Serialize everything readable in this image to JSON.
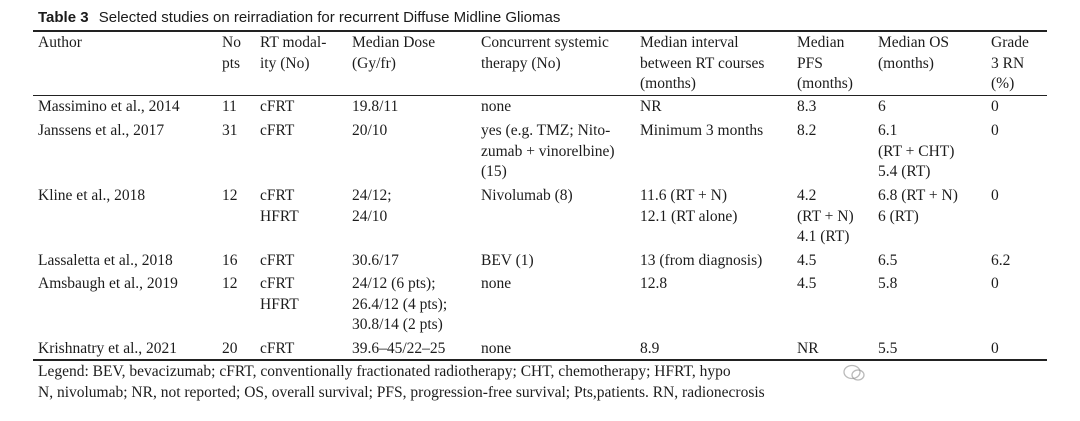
{
  "caption": {
    "label": "Table 3",
    "title": "Selected studies on reirradiation for recurrent Diffuse Midline Gliomas"
  },
  "headers": [
    [
      "Author"
    ],
    [
      "No",
      "pts"
    ],
    [
      "RT modal-",
      "ity (No)"
    ],
    [
      "Median Dose",
      "(Gy/fr)"
    ],
    [
      "Concurrent systemic",
      "therapy (No)"
    ],
    [
      "Median interval",
      "between RT courses",
      "(months)"
    ],
    [
      "Median",
      "PFS",
      "(months)"
    ],
    [
      "Median OS",
      "(months)"
    ],
    [
      "Grade",
      "3 RN",
      "(%)"
    ]
  ],
  "rows": [
    [
      [
        "Massimino et al., 2014"
      ],
      [
        "11"
      ],
      [
        "cFRT"
      ],
      [
        "19.8/11"
      ],
      [
        "none"
      ],
      [
        "NR"
      ],
      [
        "8.3"
      ],
      [
        "6"
      ],
      [
        "0"
      ]
    ],
    [
      [
        "Janssens et al., 2017"
      ],
      [
        "31"
      ],
      [
        "cFRT"
      ],
      [
        "20/10"
      ],
      [
        "yes (e.g. TMZ; Nito-",
        "zumab + vinorelbine)",
        "(15)"
      ],
      [
        "Minimum 3 months"
      ],
      [
        "8.2"
      ],
      [
        "6.1",
        "(RT + CHT)",
        "5.4 (RT)"
      ],
      [
        "0"
      ]
    ],
    [
      [
        "Kline et al., 2018"
      ],
      [
        "12"
      ],
      [
        "cFRT",
        "HFRT"
      ],
      [
        "24/12;",
        "24/10"
      ],
      [
        "Nivolumab (8)"
      ],
      [
        "11.6 (RT + N)",
        "12.1 (RT alone)"
      ],
      [
        "4.2",
        "(RT + N)",
        "4.1 (RT)"
      ],
      [
        "6.8 (RT + N)",
        "6 (RT)"
      ],
      [
        "0"
      ]
    ],
    [
      [
        "Lassaletta et al., 2018"
      ],
      [
        "16"
      ],
      [
        "cFRT"
      ],
      [
        "30.6/17"
      ],
      [
        "BEV (1)"
      ],
      [
        "13 (from diagnosis)"
      ],
      [
        "4.5"
      ],
      [
        "6.5"
      ],
      [
        "6.2"
      ]
    ],
    [
      [
        "Amsbaugh et al., 2019"
      ],
      [
        "12"
      ],
      [
        "cFRT",
        "HFRT"
      ],
      [
        "24/12 (6 pts);",
        "26.4/12 (4 pts);",
        "30.8/14 (2 pts)"
      ],
      [
        "none"
      ],
      [
        "12.8"
      ],
      [
        "4.5"
      ],
      [
        "5.8"
      ],
      [
        "0"
      ]
    ],
    [
      [
        "Krishnatry et al., 2021"
      ],
      [
        "20"
      ],
      [
        "cFRT"
      ],
      [
        "39.6–45/22–25"
      ],
      [
        "none"
      ],
      [
        "8.9"
      ],
      [
        "NR"
      ],
      [
        "5.5"
      ],
      [
        "0"
      ]
    ]
  ],
  "legend": [
    "Legend: BEV, bevacizumab; cFRT, conventionally fractionated radiotherapy; CHT, chemotherapy; HFRT, hypo",
    "N, nivolumab; NR, not reported; OS, overall survival; PFS, progression-free survival; Pts,patients. RN, radionecrosis"
  ]
}
